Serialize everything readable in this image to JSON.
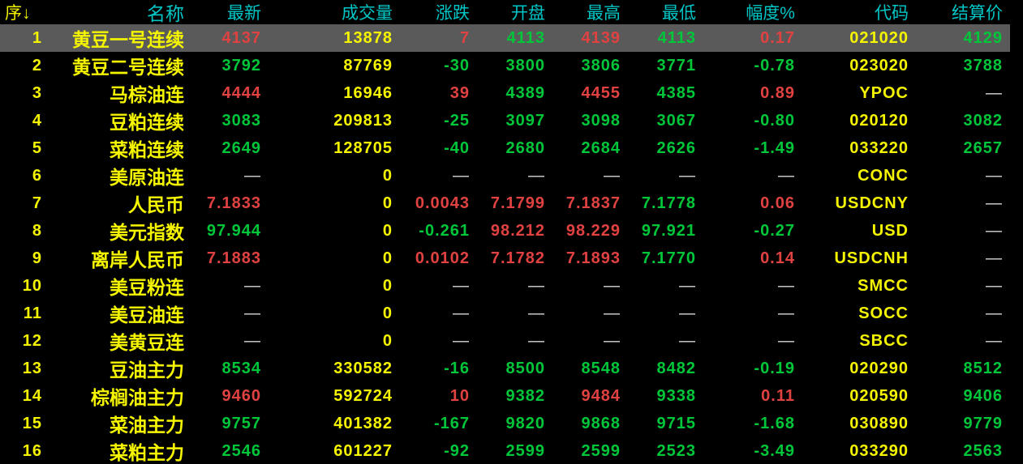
{
  "colors": {
    "background": "#000000",
    "header_text": "#00c6c6",
    "seq_header_text": "#f0f000",
    "up_red": "#e04141",
    "down_green": "#00c63a",
    "neutral_yellow": "#f5f500",
    "dash_white": "#d9d9d9",
    "selected_row_bg": "#5a5a5a"
  },
  "table": {
    "columns": [
      {
        "key": "seq",
        "label": "序↓"
      },
      {
        "key": "name",
        "label": "名称"
      },
      {
        "key": "latest",
        "label": "最新"
      },
      {
        "key": "volume",
        "label": "成交量"
      },
      {
        "key": "change",
        "label": "涨跌"
      },
      {
        "key": "open",
        "label": "开盘"
      },
      {
        "key": "high",
        "label": "最高"
      },
      {
        "key": "low",
        "label": "最低"
      },
      {
        "key": "range",
        "label": "幅度%"
      },
      {
        "key": "code",
        "label": "代码"
      },
      {
        "key": "settle",
        "label": "结算价"
      }
    ],
    "rows": [
      {
        "selected": true,
        "cells": [
          {
            "v": "1",
            "c": "yellow"
          },
          {
            "v": "黄豆一号连续",
            "c": "yellow"
          },
          {
            "v": "4137",
            "c": "red"
          },
          {
            "v": "13878",
            "c": "yellow"
          },
          {
            "v": "7",
            "c": "red"
          },
          {
            "v": "4113",
            "c": "green"
          },
          {
            "v": "4139",
            "c": "red"
          },
          {
            "v": "4113",
            "c": "green"
          },
          {
            "v": "0.17",
            "c": "red"
          },
          {
            "v": "021020",
            "c": "yellow"
          },
          {
            "v": "4129",
            "c": "green"
          }
        ]
      },
      {
        "selected": false,
        "cells": [
          {
            "v": "2",
            "c": "yellow"
          },
          {
            "v": "黄豆二号连续",
            "c": "yellow"
          },
          {
            "v": "3792",
            "c": "green"
          },
          {
            "v": "87769",
            "c": "yellow"
          },
          {
            "v": "-30",
            "c": "green"
          },
          {
            "v": "3800",
            "c": "green"
          },
          {
            "v": "3806",
            "c": "green"
          },
          {
            "v": "3771",
            "c": "green"
          },
          {
            "v": "-0.78",
            "c": "green"
          },
          {
            "v": "023020",
            "c": "yellow"
          },
          {
            "v": "3788",
            "c": "green"
          }
        ]
      },
      {
        "selected": false,
        "cells": [
          {
            "v": "3",
            "c": "yellow"
          },
          {
            "v": "马棕油连",
            "c": "yellow"
          },
          {
            "v": "4444",
            "c": "red"
          },
          {
            "v": "16946",
            "c": "yellow"
          },
          {
            "v": "39",
            "c": "red"
          },
          {
            "v": "4389",
            "c": "green"
          },
          {
            "v": "4455",
            "c": "red"
          },
          {
            "v": "4385",
            "c": "green"
          },
          {
            "v": "0.89",
            "c": "red"
          },
          {
            "v": "YPOC",
            "c": "yellow"
          },
          {
            "v": "—",
            "c": "dash"
          }
        ]
      },
      {
        "selected": false,
        "cells": [
          {
            "v": "4",
            "c": "yellow"
          },
          {
            "v": "豆粕连续",
            "c": "yellow"
          },
          {
            "v": "3083",
            "c": "green"
          },
          {
            "v": "209813",
            "c": "yellow"
          },
          {
            "v": "-25",
            "c": "green"
          },
          {
            "v": "3097",
            "c": "green"
          },
          {
            "v": "3098",
            "c": "green"
          },
          {
            "v": "3067",
            "c": "green"
          },
          {
            "v": "-0.80",
            "c": "green"
          },
          {
            "v": "020120",
            "c": "yellow"
          },
          {
            "v": "3082",
            "c": "green"
          }
        ]
      },
      {
        "selected": false,
        "cells": [
          {
            "v": "5",
            "c": "yellow"
          },
          {
            "v": "菜粕连续",
            "c": "yellow"
          },
          {
            "v": "2649",
            "c": "green"
          },
          {
            "v": "128705",
            "c": "yellow"
          },
          {
            "v": "-40",
            "c": "green"
          },
          {
            "v": "2680",
            "c": "green"
          },
          {
            "v": "2684",
            "c": "green"
          },
          {
            "v": "2626",
            "c": "green"
          },
          {
            "v": "-1.49",
            "c": "green"
          },
          {
            "v": "033220",
            "c": "yellow"
          },
          {
            "v": "2657",
            "c": "green"
          }
        ]
      },
      {
        "selected": false,
        "cells": [
          {
            "v": "6",
            "c": "yellow"
          },
          {
            "v": "美原油连",
            "c": "yellow"
          },
          {
            "v": "—",
            "c": "dash"
          },
          {
            "v": "0",
            "c": "yellow"
          },
          {
            "v": "—",
            "c": "dash"
          },
          {
            "v": "—",
            "c": "dash"
          },
          {
            "v": "—",
            "c": "dash"
          },
          {
            "v": "—",
            "c": "dash"
          },
          {
            "v": "—",
            "c": "dash"
          },
          {
            "v": "CONC",
            "c": "yellow"
          },
          {
            "v": "—",
            "c": "dash"
          }
        ]
      },
      {
        "selected": false,
        "cells": [
          {
            "v": "7",
            "c": "yellow"
          },
          {
            "v": "人民币",
            "c": "yellow"
          },
          {
            "v": "7.1833",
            "c": "red"
          },
          {
            "v": "0",
            "c": "yellow"
          },
          {
            "v": "0.0043",
            "c": "red"
          },
          {
            "v": "7.1799",
            "c": "red"
          },
          {
            "v": "7.1837",
            "c": "red"
          },
          {
            "v": "7.1778",
            "c": "green"
          },
          {
            "v": "0.06",
            "c": "red"
          },
          {
            "v": "USDCNY",
            "c": "yellow"
          },
          {
            "v": "—",
            "c": "dash"
          }
        ]
      },
      {
        "selected": false,
        "cells": [
          {
            "v": "8",
            "c": "yellow"
          },
          {
            "v": "美元指数",
            "c": "yellow"
          },
          {
            "v": "97.944",
            "c": "green"
          },
          {
            "v": "0",
            "c": "yellow"
          },
          {
            "v": "-0.261",
            "c": "green"
          },
          {
            "v": "98.212",
            "c": "red"
          },
          {
            "v": "98.229",
            "c": "red"
          },
          {
            "v": "97.921",
            "c": "green"
          },
          {
            "v": "-0.27",
            "c": "green"
          },
          {
            "v": "USD",
            "c": "yellow"
          },
          {
            "v": "—",
            "c": "dash"
          }
        ]
      },
      {
        "selected": false,
        "cells": [
          {
            "v": "9",
            "c": "yellow"
          },
          {
            "v": "离岸人民币",
            "c": "yellow"
          },
          {
            "v": "7.1883",
            "c": "red"
          },
          {
            "v": "0",
            "c": "yellow"
          },
          {
            "v": "0.0102",
            "c": "red"
          },
          {
            "v": "7.1782",
            "c": "red"
          },
          {
            "v": "7.1893",
            "c": "red"
          },
          {
            "v": "7.1770",
            "c": "green"
          },
          {
            "v": "0.14",
            "c": "red"
          },
          {
            "v": "USDCNH",
            "c": "yellow"
          },
          {
            "v": "—",
            "c": "dash"
          }
        ]
      },
      {
        "selected": false,
        "cells": [
          {
            "v": "10",
            "c": "yellow"
          },
          {
            "v": "美豆粉连",
            "c": "yellow"
          },
          {
            "v": "—",
            "c": "dash"
          },
          {
            "v": "0",
            "c": "yellow"
          },
          {
            "v": "—",
            "c": "dash"
          },
          {
            "v": "—",
            "c": "dash"
          },
          {
            "v": "—",
            "c": "dash"
          },
          {
            "v": "—",
            "c": "dash"
          },
          {
            "v": "—",
            "c": "dash"
          },
          {
            "v": "SMCC",
            "c": "yellow"
          },
          {
            "v": "—",
            "c": "dash"
          }
        ]
      },
      {
        "selected": false,
        "cells": [
          {
            "v": "11",
            "c": "yellow"
          },
          {
            "v": "美豆油连",
            "c": "yellow"
          },
          {
            "v": "—",
            "c": "dash"
          },
          {
            "v": "0",
            "c": "yellow"
          },
          {
            "v": "—",
            "c": "dash"
          },
          {
            "v": "—",
            "c": "dash"
          },
          {
            "v": "—",
            "c": "dash"
          },
          {
            "v": "—",
            "c": "dash"
          },
          {
            "v": "—",
            "c": "dash"
          },
          {
            "v": "SOCC",
            "c": "yellow"
          },
          {
            "v": "—",
            "c": "dash"
          }
        ]
      },
      {
        "selected": false,
        "cells": [
          {
            "v": "12",
            "c": "yellow"
          },
          {
            "v": "美黄豆连",
            "c": "yellow"
          },
          {
            "v": "—",
            "c": "dash"
          },
          {
            "v": "0",
            "c": "yellow"
          },
          {
            "v": "—",
            "c": "dash"
          },
          {
            "v": "—",
            "c": "dash"
          },
          {
            "v": "—",
            "c": "dash"
          },
          {
            "v": "—",
            "c": "dash"
          },
          {
            "v": "—",
            "c": "dash"
          },
          {
            "v": "SBCC",
            "c": "yellow"
          },
          {
            "v": "—",
            "c": "dash"
          }
        ]
      },
      {
        "selected": false,
        "cells": [
          {
            "v": "13",
            "c": "yellow"
          },
          {
            "v": "豆油主力",
            "c": "yellow"
          },
          {
            "v": "8534",
            "c": "green"
          },
          {
            "v": "330582",
            "c": "yellow"
          },
          {
            "v": "-16",
            "c": "green"
          },
          {
            "v": "8500",
            "c": "green"
          },
          {
            "v": "8548",
            "c": "green"
          },
          {
            "v": "8482",
            "c": "green"
          },
          {
            "v": "-0.19",
            "c": "green"
          },
          {
            "v": "020290",
            "c": "yellow"
          },
          {
            "v": "8512",
            "c": "green"
          }
        ]
      },
      {
        "selected": false,
        "cells": [
          {
            "v": "14",
            "c": "yellow"
          },
          {
            "v": "棕榈油主力",
            "c": "yellow"
          },
          {
            "v": "9460",
            "c": "red"
          },
          {
            "v": "592724",
            "c": "yellow"
          },
          {
            "v": "10",
            "c": "red"
          },
          {
            "v": "9382",
            "c": "green"
          },
          {
            "v": "9484",
            "c": "red"
          },
          {
            "v": "9338",
            "c": "green"
          },
          {
            "v": "0.11",
            "c": "red"
          },
          {
            "v": "020590",
            "c": "yellow"
          },
          {
            "v": "9406",
            "c": "green"
          }
        ]
      },
      {
        "selected": false,
        "cells": [
          {
            "v": "15",
            "c": "yellow"
          },
          {
            "v": "菜油主力",
            "c": "yellow"
          },
          {
            "v": "9757",
            "c": "green"
          },
          {
            "v": "401382",
            "c": "yellow"
          },
          {
            "v": "-167",
            "c": "green"
          },
          {
            "v": "9820",
            "c": "green"
          },
          {
            "v": "9868",
            "c": "green"
          },
          {
            "v": "9715",
            "c": "green"
          },
          {
            "v": "-1.68",
            "c": "green"
          },
          {
            "v": "030890",
            "c": "yellow"
          },
          {
            "v": "9779",
            "c": "green"
          }
        ]
      },
      {
        "selected": false,
        "cells": [
          {
            "v": "16",
            "c": "yellow"
          },
          {
            "v": "菜粕主力",
            "c": "yellow"
          },
          {
            "v": "2546",
            "c": "green"
          },
          {
            "v": "601227",
            "c": "yellow"
          },
          {
            "v": "-92",
            "c": "green"
          },
          {
            "v": "2599",
            "c": "green"
          },
          {
            "v": "2599",
            "c": "green"
          },
          {
            "v": "2523",
            "c": "green"
          },
          {
            "v": "-3.49",
            "c": "green"
          },
          {
            "v": "033290",
            "c": "yellow"
          },
          {
            "v": "2563",
            "c": "green"
          }
        ]
      }
    ]
  }
}
